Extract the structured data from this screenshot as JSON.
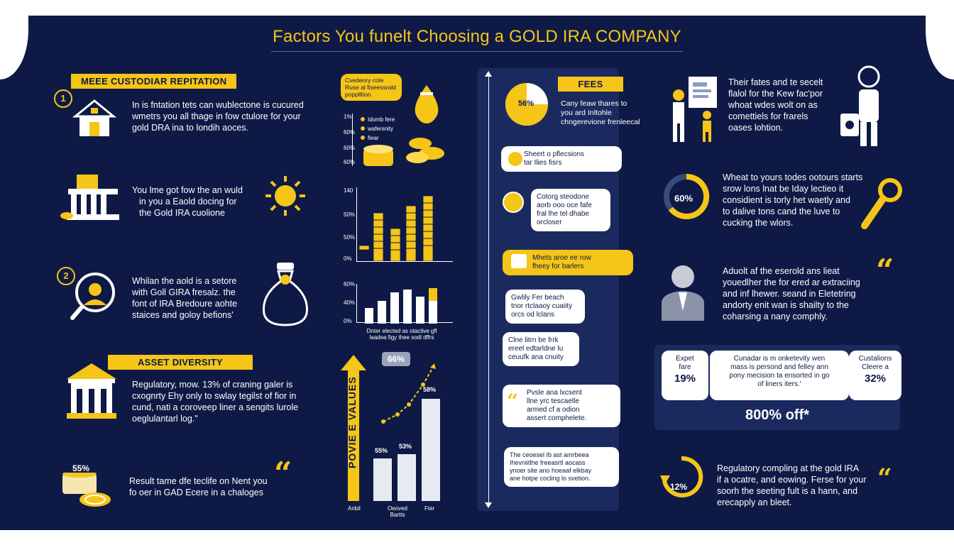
{
  "title": "Factors You funelt Choosing a GOLD IRA COMPANY",
  "colors": {
    "background": "#0e1a45",
    "accent": "#f5c518",
    "text": "#ffffff"
  },
  "left": {
    "banner1": "MEEE CUSTODIAR REPITATION",
    "item1_num": "1",
    "item1_text": [
      "In is fntation tets can wublectone is cucured",
      "wmetrs you all thage in fow ctulore for your",
      "gold DRA ina to londih aoces."
    ],
    "item2_text": [
      "You lme got fow the an wuld",
      "in you a Eaold docing for",
      "the Gold IRA cuolione"
    ],
    "item3_num": "2",
    "item3_text": [
      "Whilan the aold is a setore",
      "with Goll GIRA fresalz. the",
      "font of IRA Bredoure aohte",
      "staices and goloy befions'"
    ],
    "banner2": "ASSET DIVERSITY",
    "item4_text": [
      "Regulatory, mow. 13% of craning galer is",
      "cxognrty Ehy only to swlay tegilst of fior in",
      "cund, nati a coroveep liner a sengits lurole",
      "oeglulantarl log.\""
    ],
    "item5_label": "55%",
    "item5_text": [
      "Result tame dfe teclife on Nent you",
      "fo oer in GAD Ecere in a chaloges"
    ]
  },
  "mid": {
    "legend_title": [
      "Cvedeory cole",
      "Ruse al fiseessrald",
      "popplltion."
    ],
    "legend_items": [
      "Idomb fere",
      "wafersnity",
      "fiear"
    ],
    "chart1_ticks": [
      "1%",
      "60%",
      "60%",
      "60%"
    ],
    "chart2_ticks": [
      "140",
      "50%",
      "50%",
      "0%"
    ],
    "chart3_ticks": [
      "60%",
      "40%",
      "0%"
    ],
    "chart3_caption": [
      "Dnter elected as otactive gfl",
      "laadea figy thee sodl dffrs"
    ],
    "chart4_ylabel": "POVIE E VALUES",
    "chart4_badge": "66%",
    "chart4_labels": [
      "55%",
      "53%",
      "58%"
    ],
    "chart4_cats": [
      "Anbil",
      "Oeoved Bartts",
      "Fter"
    ]
  },
  "timeline": {
    "fees_label": "FEES",
    "pie_label": "56%",
    "fees_text": [
      "Cany feaw thares to",
      "you ard Inltohle",
      "chngerevione frenleecal"
    ],
    "bubbles": [
      [
        "Sheert o pflecsions",
        "tar Ilies fisrs"
      ],
      [
        "Cotorg steodone",
        "aorb ooo oce fafe",
        "fral lhe tel dhabe",
        "orcloser"
      ],
      [
        "Mhets aroe ee row",
        "fheey for barlers"
      ],
      [
        "Gwlily Fer beach",
        "tnor rtclaaoy cuaiity",
        "orcs od lclans"
      ],
      [
        "Clne litrn be frrk",
        "ereel edtarldne lu",
        "ceuufk ana cnuity"
      ],
      [
        "Pvsle ana lxcsent",
        "llne yrc tescaelle",
        "armed cf a odion",
        "assert comphelete."
      ],
      [
        "The ceoesel Ib ast amrbeea",
        "Ihevniitlhe freeasrtl aocass",
        "ynoer site ano hoeaaf elkbay",
        "ane hotpe cocling lo svetion."
      ]
    ]
  },
  "right": {
    "item1_text": [
      "Their fates and te secelt",
      "flalol for the Kew fac'por",
      "whoat wdes wolt on as",
      "comettiels for frarels",
      "oases lohtion."
    ],
    "gauge_label": "60%",
    "gauge_side": "—",
    "item2_text": [
      "Wheat to yours todes ootours starts",
      "srow lons lnat be Iday lectieo it",
      "considient is torly het waetly and",
      "to dalive tons cand the luve to",
      "cucking the wlors."
    ],
    "item3_text": [
      "Aduolt af the eserold ans lieat",
      "youedlher the for ered ar extraciing",
      "and inf lhewer. seand in Eletetring",
      "andorty enit wan is shailty to the",
      "coharsing a nany comphly."
    ],
    "card_left_label": [
      "Expet",
      "fare"
    ],
    "card_left_value": "19%",
    "card_mid_text": [
      "Cunadar is m onketevity wen",
      "mass is persond and felley ann",
      "pony mecision ta ensorted in go",
      "of liners iters.'"
    ],
    "card_right_label": [
      "Custalions",
      "Cleere a"
    ],
    "card_right_value": "32%",
    "card_bottom": "800% off*",
    "cycle_label": "12%",
    "item4_text": [
      "Regulatory compling at the gold IRA",
      "if a ocatre, and eowing. Ferse for your",
      "soorh the seeting fult is a hann, and",
      "erecapply an bleet."
    ]
  }
}
